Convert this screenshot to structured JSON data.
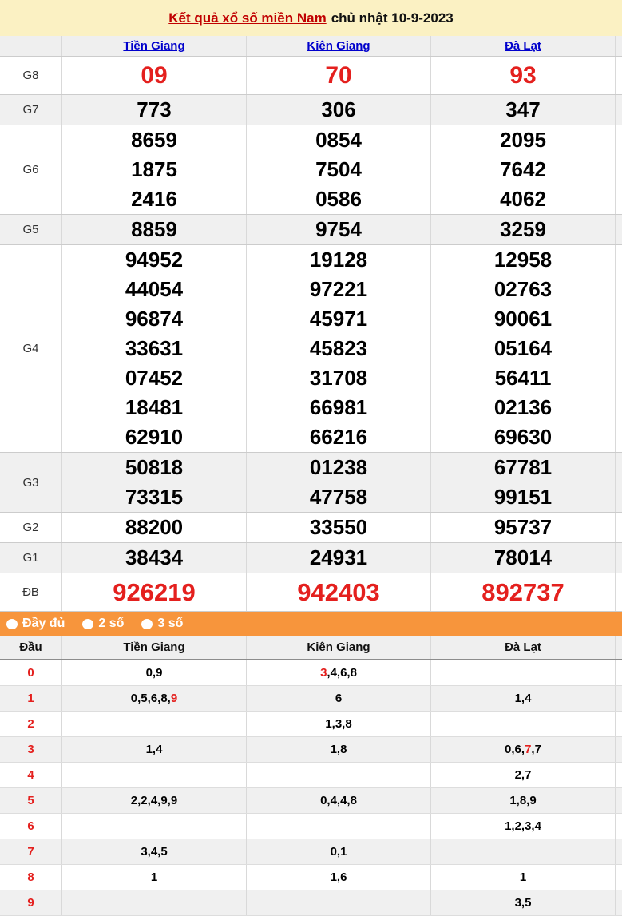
{
  "title": {
    "highlight": "Kết quả xổ số miền Nam",
    "date_part": "chủ nhật 10-9-2023"
  },
  "provinces": [
    "Tiền Giang",
    "Kiên Giang",
    "Đà Lạt"
  ],
  "results_table": {
    "prizes": [
      {
        "label": "G8",
        "style": "red-big",
        "values": [
          [
            "09"
          ],
          [
            "70"
          ],
          [
            "93"
          ]
        ]
      },
      {
        "label": "G7",
        "style": "normal",
        "values": [
          [
            "773"
          ],
          [
            "306"
          ],
          [
            "347"
          ]
        ]
      },
      {
        "label": "G6",
        "style": "normal",
        "values": [
          [
            "8659",
            "1875",
            "2416"
          ],
          [
            "0854",
            "7504",
            "0586"
          ],
          [
            "2095",
            "7642",
            "4062"
          ]
        ]
      },
      {
        "label": "G5",
        "style": "normal",
        "values": [
          [
            "8859"
          ],
          [
            "9754"
          ],
          [
            "3259"
          ]
        ]
      },
      {
        "label": "G4",
        "style": "normal",
        "values": [
          [
            "94952",
            "44054",
            "96874",
            "33631",
            "07452",
            "18481",
            "62910"
          ],
          [
            "19128",
            "97221",
            "45971",
            "45823",
            "31708",
            "66981",
            "66216"
          ],
          [
            "12958",
            "02763",
            "90061",
            "05164",
            "56411",
            "02136",
            "69630"
          ]
        ]
      },
      {
        "label": "G3",
        "style": "normal",
        "values": [
          [
            "50818",
            "73315"
          ],
          [
            "01238",
            "47758"
          ],
          [
            "67781",
            "99151"
          ]
        ]
      },
      {
        "label": "G2",
        "style": "normal",
        "values": [
          [
            "88200"
          ],
          [
            "33550"
          ],
          [
            "95737"
          ]
        ]
      },
      {
        "label": "G1",
        "style": "normal",
        "values": [
          [
            "38434"
          ],
          [
            "24931"
          ],
          [
            "78014"
          ]
        ]
      },
      {
        "label": "ĐB",
        "style": "red-db",
        "values": [
          [
            "926219"
          ],
          [
            "942403"
          ],
          [
            "892737"
          ]
        ]
      }
    ]
  },
  "filter_bar": {
    "options": [
      "Đầy đủ",
      "2 số",
      "3 số"
    ]
  },
  "heads_table": {
    "headers": [
      "Đầu",
      "Tiền Giang",
      "Kiên Giang",
      "Đà Lạt"
    ],
    "rows": [
      {
        "head": "0",
        "cells": [
          [
            {
              "t": "0,9"
            }
          ],
          [
            {
              "t": "3",
              "red": true
            },
            {
              "t": ",4,6,8"
            }
          ],
          []
        ]
      },
      {
        "head": "1",
        "cells": [
          [
            {
              "t": "0,5,6,8,"
            },
            {
              "t": "9",
              "red": true
            }
          ],
          [
            {
              "t": "6"
            }
          ],
          [
            {
              "t": "1,4"
            }
          ]
        ]
      },
      {
        "head": "2",
        "cells": [
          [],
          [
            {
              "t": "1,3,8"
            }
          ],
          []
        ]
      },
      {
        "head": "3",
        "cells": [
          [
            {
              "t": "1,4"
            }
          ],
          [
            {
              "t": "1,8"
            }
          ],
          [
            {
              "t": "0,6,"
            },
            {
              "t": "7",
              "red": true
            },
            {
              "t": ",7"
            }
          ]
        ]
      },
      {
        "head": "4",
        "cells": [
          [],
          [],
          [
            {
              "t": "2,7"
            }
          ]
        ]
      },
      {
        "head": "5",
        "cells": [
          [
            {
              "t": "2,2,4,9,9"
            }
          ],
          [
            {
              "t": "0,4,4,8"
            }
          ],
          [
            {
              "t": "1,8,9"
            }
          ]
        ]
      },
      {
        "head": "6",
        "cells": [
          [],
          [],
          [
            {
              "t": "1,2,3,4"
            }
          ]
        ]
      },
      {
        "head": "7",
        "cells": [
          [
            {
              "t": "3,4,5"
            }
          ],
          [
            {
              "t": "0,1"
            }
          ],
          []
        ]
      },
      {
        "head": "8",
        "cells": [
          [
            {
              "t": "1"
            }
          ],
          [
            {
              "t": "1,6"
            }
          ],
          [
            {
              "t": "1"
            }
          ]
        ]
      },
      {
        "head": "9",
        "cells": [
          [],
          [],
          [
            {
              "t": "3,5"
            }
          ]
        ]
      }
    ]
  },
  "colors": {
    "title_bg": "#fbf1c3",
    "title_red": "#c00000",
    "accent_orange": "#f7953c",
    "number_red": "#e4201e",
    "link_blue": "#0000cc",
    "row_alt_gray": "#f0f0f0"
  }
}
